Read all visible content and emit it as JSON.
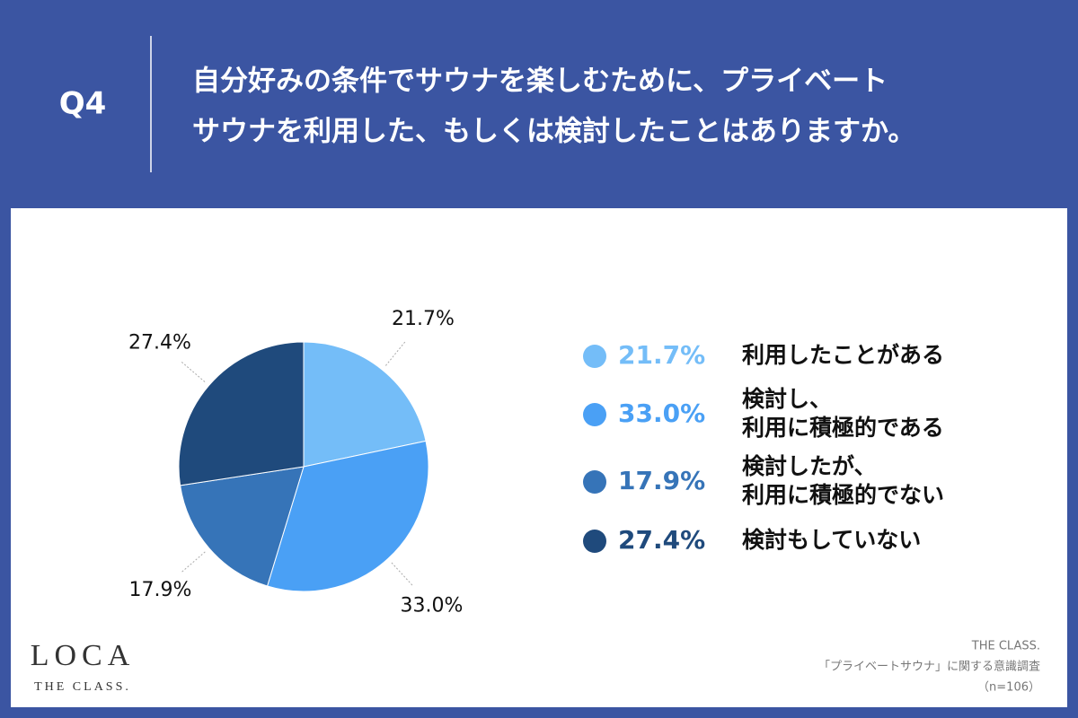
{
  "header": {
    "label": "Q4",
    "title_lines": [
      "自分好みの条件でサウナを楽しむために、プライベート",
      "サウナを利用した、もしくは検討したことはありますか。"
    ]
  },
  "chart_data": {
    "type": "pie",
    "categories": [
      [
        "利用したことがある"
      ],
      [
        "検討し、",
        "利用に積極的である"
      ],
      [
        "検討したが、",
        "利用に積極的でない"
      ],
      [
        "検討もしていない"
      ]
    ],
    "values": [
      21.7,
      33.0,
      17.9,
      27.4
    ],
    "value_labels": [
      "21.7%",
      "33.0%",
      "17.9%",
      "27.4%"
    ],
    "colors": [
      "#74bdf8",
      "#4aa0f5",
      "#3674b8",
      "#1f4a7c"
    ]
  },
  "logo": {
    "name": "LOCA",
    "sub": "THE CLASS."
  },
  "footer": [
    "THE CLASS.",
    "「プライベートサウナ」に関する意識調査",
    "（n=106）"
  ]
}
